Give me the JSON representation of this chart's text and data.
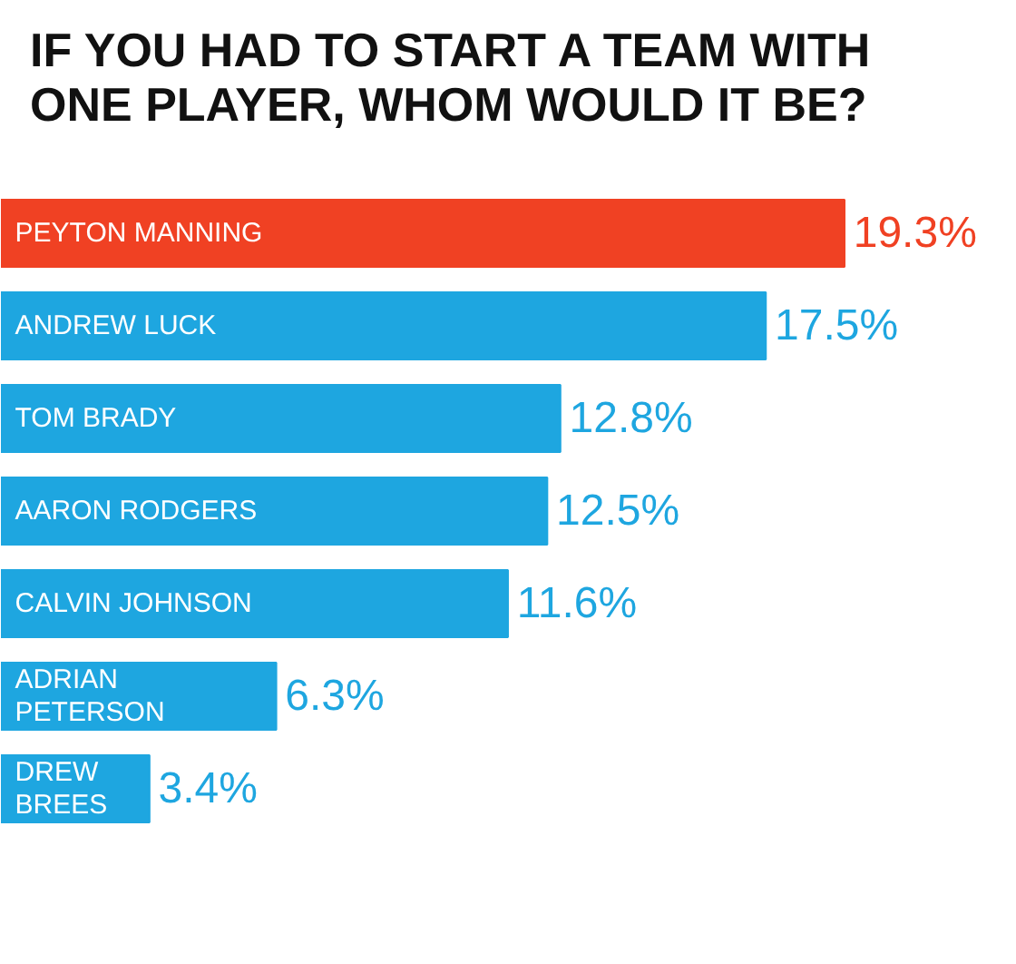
{
  "chart_data": {
    "type": "bar",
    "orientation": "horizontal",
    "title": "IF YOU HAD TO START A TEAM WITH\nONE PLAYER, WHOM WOULD IT BE?",
    "categories": [
      "PEYTON MANNING",
      "ANDREW LUCK",
      "TOM BRADY",
      "AARON RODGERS",
      "CALVIN JOHNSON",
      "ADRIAN\nPETERSON",
      "DREW\nBREES"
    ],
    "values": [
      19.3,
      17.5,
      12.8,
      12.5,
      11.6,
      6.3,
      3.4
    ],
    "value_labels": [
      "19.3%",
      "17.5%",
      "12.8%",
      "12.5%",
      "11.6%",
      "6.3%",
      "3.4%"
    ],
    "colors": [
      "#f04123",
      "#1ea6e0",
      "#1ea6e0",
      "#1ea6e0",
      "#1ea6e0",
      "#1ea6e0",
      "#1ea6e0"
    ]
  }
}
